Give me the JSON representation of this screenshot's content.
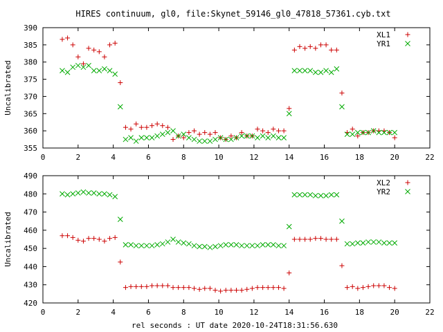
{
  "title": "HIRES continuum, gl0, file:Skynet_59146_gl0_47818_57361.cyb.txt",
  "xlabel": "rel seconds : UT date 2020-10-24T18:31:56.630",
  "colors": {
    "xl": "#cc0000",
    "yr": "#00aa00"
  },
  "chart_data": [
    {
      "type": "scatter",
      "ylabel": "Uncalibrated",
      "xlim": [
        0,
        22
      ],
      "ylim": [
        355,
        390
      ],
      "xticks": [
        0,
        2,
        4,
        6,
        8,
        10,
        12,
        14,
        16,
        18,
        20,
        22
      ],
      "yticks": [
        355,
        360,
        365,
        370,
        375,
        380,
        385,
        390
      ],
      "grid": false,
      "legend": "top-right",
      "series": [
        {
          "name": "XL1",
          "marker": "plus",
          "color": "#cc0000",
          "points": [
            [
              1.1,
              386.6
            ],
            [
              1.4,
              387
            ],
            [
              1.7,
              385
            ],
            [
              2.0,
              381.5
            ],
            [
              2.3,
              379.5
            ],
            [
              2.6,
              384
            ],
            [
              2.9,
              383.5
            ],
            [
              3.2,
              383
            ],
            [
              3.5,
              381.5
            ],
            [
              3.8,
              385
            ],
            [
              4.1,
              385.5
            ],
            [
              4.4,
              374
            ],
            [
              4.7,
              361
            ],
            [
              5.0,
              360.5
            ],
            [
              5.3,
              362
            ],
            [
              5.6,
              361
            ],
            [
              5.9,
              361
            ],
            [
              6.2,
              361.5
            ],
            [
              6.5,
              362
            ],
            [
              6.8,
              361.5
            ],
            [
              7.1,
              361
            ],
            [
              7.4,
              357.5
            ],
            [
              7.7,
              358.5
            ],
            [
              8.0,
              358
            ],
            [
              8.3,
              359.5
            ],
            [
              8.6,
              360
            ],
            [
              8.9,
              359
            ],
            [
              9.2,
              359.5
            ],
            [
              9.5,
              359
            ],
            [
              9.8,
              359.5
            ],
            [
              10.1,
              358
            ],
            [
              10.4,
              357.5
            ],
            [
              10.7,
              358.5
            ],
            [
              11.0,
              358
            ],
            [
              11.3,
              359.5
            ],
            [
              11.6,
              358.5
            ],
            [
              11.9,
              358.5
            ],
            [
              12.2,
              360.5
            ],
            [
              12.5,
              360
            ],
            [
              12.8,
              359.5
            ],
            [
              13.1,
              360.5
            ],
            [
              13.4,
              360
            ],
            [
              13.7,
              360
            ],
            [
              14.0,
              366.5
            ],
            [
              14.3,
              383.5
            ],
            [
              14.6,
              384.5
            ],
            [
              14.9,
              384
            ],
            [
              15.2,
              384.5
            ],
            [
              15.5,
              384
            ],
            [
              15.8,
              385
            ],
            [
              16.1,
              385
            ],
            [
              16.4,
              383.5
            ],
            [
              16.7,
              383.5
            ],
            [
              17.0,
              371
            ],
            [
              17.3,
              359.5
            ],
            [
              17.6,
              360.5
            ],
            [
              17.9,
              358.5
            ],
            [
              18.2,
              359.5
            ],
            [
              18.5,
              359.5
            ],
            [
              18.8,
              360
            ],
            [
              19.1,
              360
            ],
            [
              19.4,
              360
            ],
            [
              19.7,
              359.5
            ],
            [
              20.0,
              358
            ]
          ]
        },
        {
          "name": "YR1",
          "marker": "cross",
          "color": "#00aa00",
          "points": [
            [
              1.1,
              377.5
            ],
            [
              1.4,
              377
            ],
            [
              1.7,
              378.5
            ],
            [
              2.0,
              379
            ],
            [
              2.3,
              378.5
            ],
            [
              2.6,
              379
            ],
            [
              2.9,
              377.5
            ],
            [
              3.2,
              377.5
            ],
            [
              3.5,
              378
            ],
            [
              3.8,
              377.5
            ],
            [
              4.1,
              376.5
            ],
            [
              4.4,
              367
            ],
            [
              4.7,
              357.5
            ],
            [
              5.0,
              358
            ],
            [
              5.3,
              357
            ],
            [
              5.6,
              358
            ],
            [
              5.9,
              358
            ],
            [
              6.2,
              358
            ],
            [
              6.5,
              358.5
            ],
            [
              6.8,
              359
            ],
            [
              7.1,
              359.5
            ],
            [
              7.4,
              360
            ],
            [
              7.7,
              358.5
            ],
            [
              8.0,
              359
            ],
            [
              8.3,
              358
            ],
            [
              8.6,
              357.5
            ],
            [
              8.9,
              357
            ],
            [
              9.2,
              357
            ],
            [
              9.5,
              357
            ],
            [
              9.8,
              357.5
            ],
            [
              10.1,
              358
            ],
            [
              10.4,
              357.5
            ],
            [
              10.7,
              357.5
            ],
            [
              11.0,
              358
            ],
            [
              11.3,
              358.5
            ],
            [
              11.6,
              358.5
            ],
            [
              11.9,
              358.5
            ],
            [
              12.2,
              358
            ],
            [
              12.5,
              358.5
            ],
            [
              12.8,
              358
            ],
            [
              13.1,
              358.5
            ],
            [
              13.4,
              358
            ],
            [
              13.7,
              358
            ],
            [
              14.0,
              365
            ],
            [
              14.3,
              377.5
            ],
            [
              14.6,
              377.5
            ],
            [
              14.9,
              377.5
            ],
            [
              15.2,
              377.5
            ],
            [
              15.5,
              377
            ],
            [
              15.8,
              377
            ],
            [
              16.1,
              377.5
            ],
            [
              16.4,
              377
            ],
            [
              16.7,
              378
            ],
            [
              17.0,
              367
            ],
            [
              17.3,
              359
            ],
            [
              17.6,
              359
            ],
            [
              17.9,
              359.5
            ],
            [
              18.2,
              359.5
            ],
            [
              18.5,
              359.5
            ],
            [
              18.8,
              360
            ],
            [
              19.1,
              359.5
            ],
            [
              19.4,
              359.5
            ],
            [
              19.7,
              359.5
            ],
            [
              20.0,
              359.5
            ]
          ]
        }
      ]
    },
    {
      "type": "scatter",
      "ylabel": "Uncalibrated",
      "xlim": [
        0,
        22
      ],
      "ylim": [
        420,
        490
      ],
      "xticks": [
        0,
        2,
        4,
        6,
        8,
        10,
        12,
        14,
        16,
        18,
        20,
        22
      ],
      "yticks": [
        420,
        430,
        440,
        450,
        460,
        470,
        480,
        490
      ],
      "grid": false,
      "legend": "top-right",
      "series": [
        {
          "name": "XL2",
          "marker": "plus",
          "color": "#cc0000",
          "points": [
            [
              1.1,
              457
            ],
            [
              1.4,
              457
            ],
            [
              1.7,
              456
            ],
            [
              2.0,
              454.5
            ],
            [
              2.3,
              454
            ],
            [
              2.6,
              455.5
            ],
            [
              2.9,
              455.5
            ],
            [
              3.2,
              455
            ],
            [
              3.5,
              454
            ],
            [
              3.8,
              455.5
            ],
            [
              4.1,
              456
            ],
            [
              4.4,
              442.5
            ],
            [
              4.7,
              428.5
            ],
            [
              5.0,
              429
            ],
            [
              5.3,
              429
            ],
            [
              5.6,
              429
            ],
            [
              5.9,
              429
            ],
            [
              6.2,
              429.5
            ],
            [
              6.5,
              429.5
            ],
            [
              6.8,
              429.5
            ],
            [
              7.1,
              429.5
            ],
            [
              7.4,
              428.5
            ],
            [
              7.7,
              428.5
            ],
            [
              8.0,
              428.5
            ],
            [
              8.3,
              428.5
            ],
            [
              8.6,
              428
            ],
            [
              8.9,
              427.5
            ],
            [
              9.2,
              428
            ],
            [
              9.5,
              428
            ],
            [
              9.8,
              427
            ],
            [
              10.1,
              426.5
            ],
            [
              10.4,
              427
            ],
            [
              10.7,
              427
            ],
            [
              11.0,
              427
            ],
            [
              11.3,
              427
            ],
            [
              11.6,
              427.5
            ],
            [
              11.9,
              428
            ],
            [
              12.2,
              428.5
            ],
            [
              12.5,
              428.5
            ],
            [
              12.8,
              428.5
            ],
            [
              13.1,
              428.5
            ],
            [
              13.4,
              428.5
            ],
            [
              13.7,
              428
            ],
            [
              14.0,
              436.5
            ],
            [
              14.3,
              455
            ],
            [
              14.6,
              455
            ],
            [
              14.9,
              455
            ],
            [
              15.2,
              455
            ],
            [
              15.5,
              455.5
            ],
            [
              15.8,
              455.5
            ],
            [
              16.1,
              455
            ],
            [
              16.4,
              455
            ],
            [
              16.7,
              455
            ],
            [
              17.0,
              440.5
            ],
            [
              17.3,
              428.5
            ],
            [
              17.6,
              429
            ],
            [
              17.9,
              428
            ],
            [
              18.2,
              428.5
            ],
            [
              18.5,
              429
            ],
            [
              18.8,
              429.5
            ],
            [
              19.1,
              429.5
            ],
            [
              19.4,
              429.5
            ],
            [
              19.7,
              428.5
            ],
            [
              20.0,
              428
            ]
          ]
        },
        {
          "name": "YR2",
          "marker": "cross",
          "color": "#00aa00",
          "points": [
            [
              1.1,
              480
            ],
            [
              1.4,
              479.5
            ],
            [
              1.7,
              480
            ],
            [
              2.0,
              480.5
            ],
            [
              2.3,
              481
            ],
            [
              2.6,
              480.5
            ],
            [
              2.9,
              480.5
            ],
            [
              3.2,
              480
            ],
            [
              3.5,
              480
            ],
            [
              3.8,
              479.5
            ],
            [
              4.1,
              478.5
            ],
            [
              4.4,
              466
            ],
            [
              4.7,
              452
            ],
            [
              5.0,
              452
            ],
            [
              5.3,
              451.5
            ],
            [
              5.6,
              451.5
            ],
            [
              5.9,
              451.5
            ],
            [
              6.2,
              451.5
            ],
            [
              6.5,
              452
            ],
            [
              6.8,
              452.5
            ],
            [
              7.1,
              453.5
            ],
            [
              7.4,
              455
            ],
            [
              7.7,
              453.5
            ],
            [
              8.0,
              453
            ],
            [
              8.3,
              452.5
            ],
            [
              8.6,
              451.5
            ],
            [
              8.9,
              451
            ],
            [
              9.2,
              451
            ],
            [
              9.5,
              450.5
            ],
            [
              9.8,
              451
            ],
            [
              10.1,
              451.5
            ],
            [
              10.4,
              452
            ],
            [
              10.7,
              452
            ],
            [
              11.0,
              452
            ],
            [
              11.3,
              451.5
            ],
            [
              11.6,
              451.5
            ],
            [
              11.9,
              451.5
            ],
            [
              12.2,
              451.5
            ],
            [
              12.5,
              452
            ],
            [
              12.8,
              452
            ],
            [
              13.1,
              452
            ],
            [
              13.4,
              451.5
            ],
            [
              13.7,
              451.5
            ],
            [
              14.0,
              462
            ],
            [
              14.3,
              479.5
            ],
            [
              14.6,
              479.5
            ],
            [
              14.9,
              479.5
            ],
            [
              15.2,
              479.5
            ],
            [
              15.5,
              479
            ],
            [
              15.8,
              479
            ],
            [
              16.1,
              479
            ],
            [
              16.4,
              479.5
            ],
            [
              16.7,
              479.5
            ],
            [
              17.0,
              465
            ],
            [
              17.3,
              452.5
            ],
            [
              17.6,
              452.5
            ],
            [
              17.9,
              453
            ],
            [
              18.2,
              453
            ],
            [
              18.5,
              453.5
            ],
            [
              18.8,
              453.5
            ],
            [
              19.1,
              453.5
            ],
            [
              19.4,
              453
            ],
            [
              19.7,
              453
            ],
            [
              20.0,
              453
            ]
          ]
        }
      ]
    }
  ]
}
